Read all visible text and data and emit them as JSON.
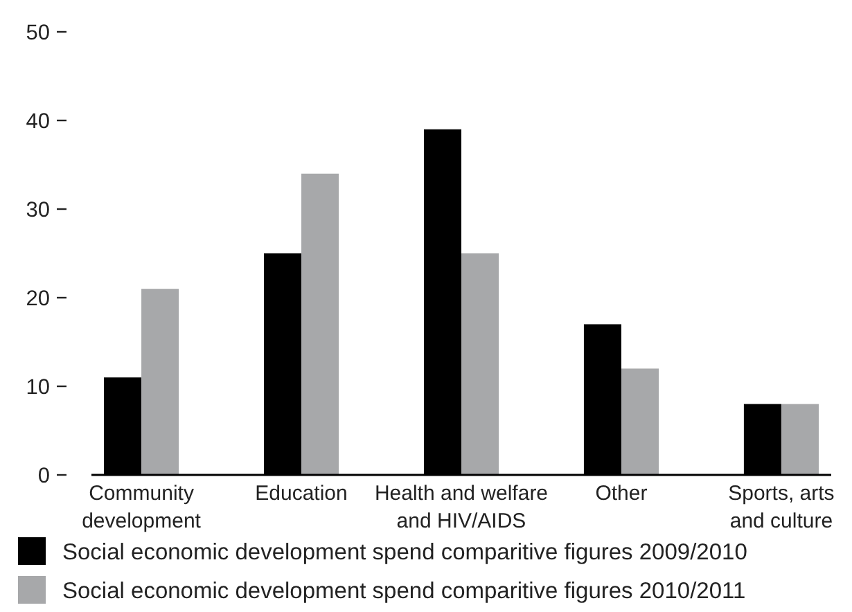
{
  "chart_data": {
    "type": "bar",
    "categories": [
      "Community development",
      "Education",
      "Health and welfare and HIV/AIDS",
      "Other",
      "Sports, arts and culture"
    ],
    "series": [
      {
        "name": "Social economic development spend comparitive figures 2009/2010",
        "color": "#000000",
        "values": [
          11,
          25,
          39,
          17,
          8
        ]
      },
      {
        "name": "Social economic development spend comparitive figures 2010/2011",
        "color": "#a7a8aa",
        "values": [
          21,
          34,
          25,
          12,
          8
        ]
      }
    ],
    "ylim": [
      0,
      50
    ],
    "yticks": [
      0,
      10,
      20,
      30,
      40,
      50
    ],
    "legend": "bottom"
  }
}
